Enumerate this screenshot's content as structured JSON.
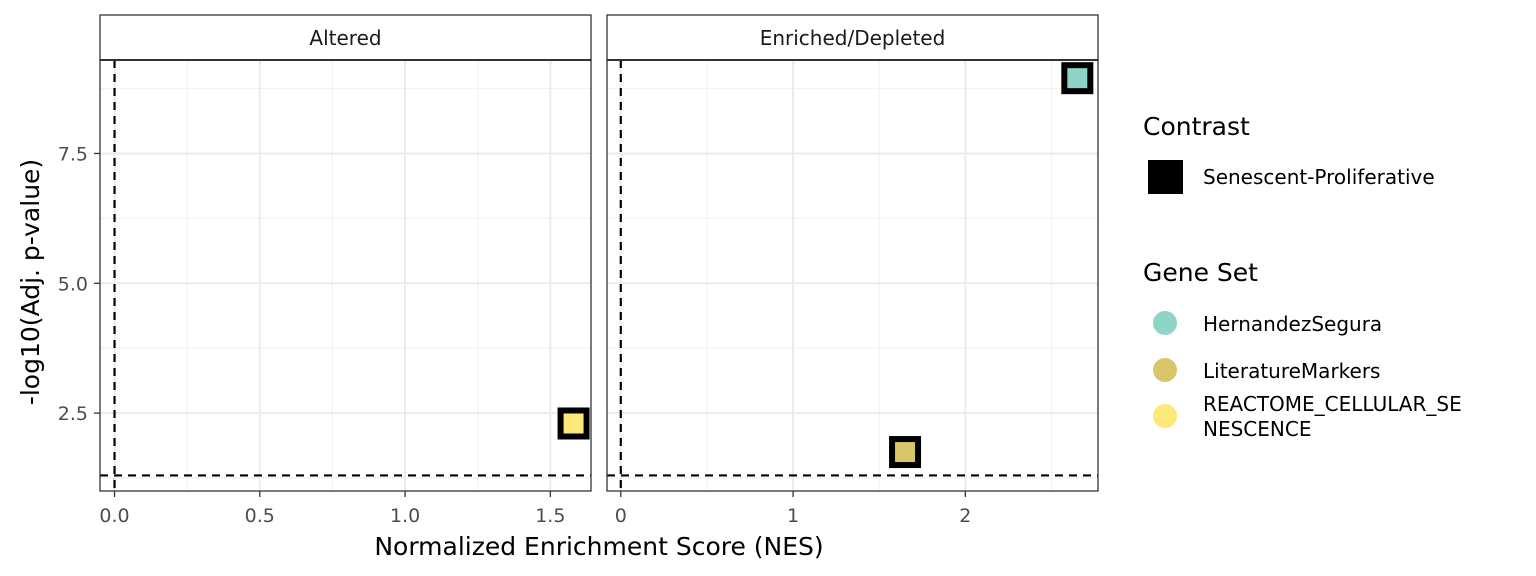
{
  "chart_data": {
    "type": "scatter",
    "xlabel": "Normalized Enrichment Score (NES)",
    "ylabel": "-log10(Adj. p-value)",
    "y_ticks": [
      "2.5",
      "5.0",
      "7.5"
    ],
    "y_tick_values": [
      2.5,
      5.0,
      7.5
    ],
    "ylim": [
      1.0,
      9.3
    ],
    "facets": [
      {
        "label": "Altered",
        "xlim": [
          -0.05,
          1.64
        ],
        "x_ticks": [
          "0.0",
          "0.5",
          "1.0",
          "1.5"
        ],
        "x_tick_values": [
          0.0,
          0.5,
          1.0,
          1.5
        ],
        "points": [
          {
            "x": 1.58,
            "y": 2.3,
            "gene_set": "REACTOME_CELLULAR_SENESCENCE",
            "contrast": "Senescent-Proliferative"
          }
        ]
      },
      {
        "label": "Enriched/Depleted",
        "xlim": [
          -0.08,
          2.77
        ],
        "x_ticks": [
          "0",
          "1",
          "2"
        ],
        "x_tick_values": [
          0,
          1,
          2
        ],
        "points": [
          {
            "x": 2.65,
            "y": 8.95,
            "gene_set": "HernandezSegura",
            "contrast": "Senescent-Proliferative"
          },
          {
            "x": 1.65,
            "y": 1.75,
            "gene_set": "LiteratureMarkers",
            "contrast": "Senescent-Proliferative"
          }
        ]
      }
    ],
    "reference_lines": {
      "x": 0,
      "y": 1.3,
      "style": "dashed"
    },
    "legends": [
      {
        "title": "Contrast",
        "items": [
          {
            "label": "Senescent-Proliferative",
            "shape": "square",
            "color": "#000000"
          }
        ]
      },
      {
        "title": "Gene Set",
        "items": [
          {
            "label": "HernandezSegura",
            "line1": "HernandezSegura",
            "line2": "",
            "color": "#8fd4c8"
          },
          {
            "label": "LiteratureMarkers",
            "line1": "LiteratureMarkers",
            "line2": "",
            "color": "#d9c66a"
          },
          {
            "label": "REACTOME_CELLULAR_SENESCENCE",
            "line1": "REACTOME_CELLULAR_SE",
            "line2": "NESCENCE",
            "color": "#fce97a"
          }
        ]
      }
    ],
    "grid": true,
    "legend_position": "right"
  }
}
